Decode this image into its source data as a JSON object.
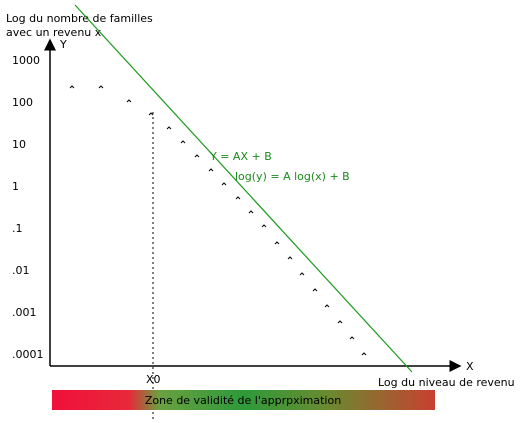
{
  "title": [
    "Log du nombre de familles",
    "avec un revenu x"
  ],
  "axes": {
    "y": "Y",
    "x": "X",
    "x_label": "Log du niveau de revenu"
  },
  "y_tick_labels": [
    "1000",
    "100",
    "10",
    "1",
    ".1",
    ".01",
    ".001",
    ".0001"
  ],
  "marker": "X0",
  "equations": [
    "Y = AX + B",
    "log(y) = A log(x) + B"
  ],
  "band": "Zone de validité de l'apprpximation"
}
